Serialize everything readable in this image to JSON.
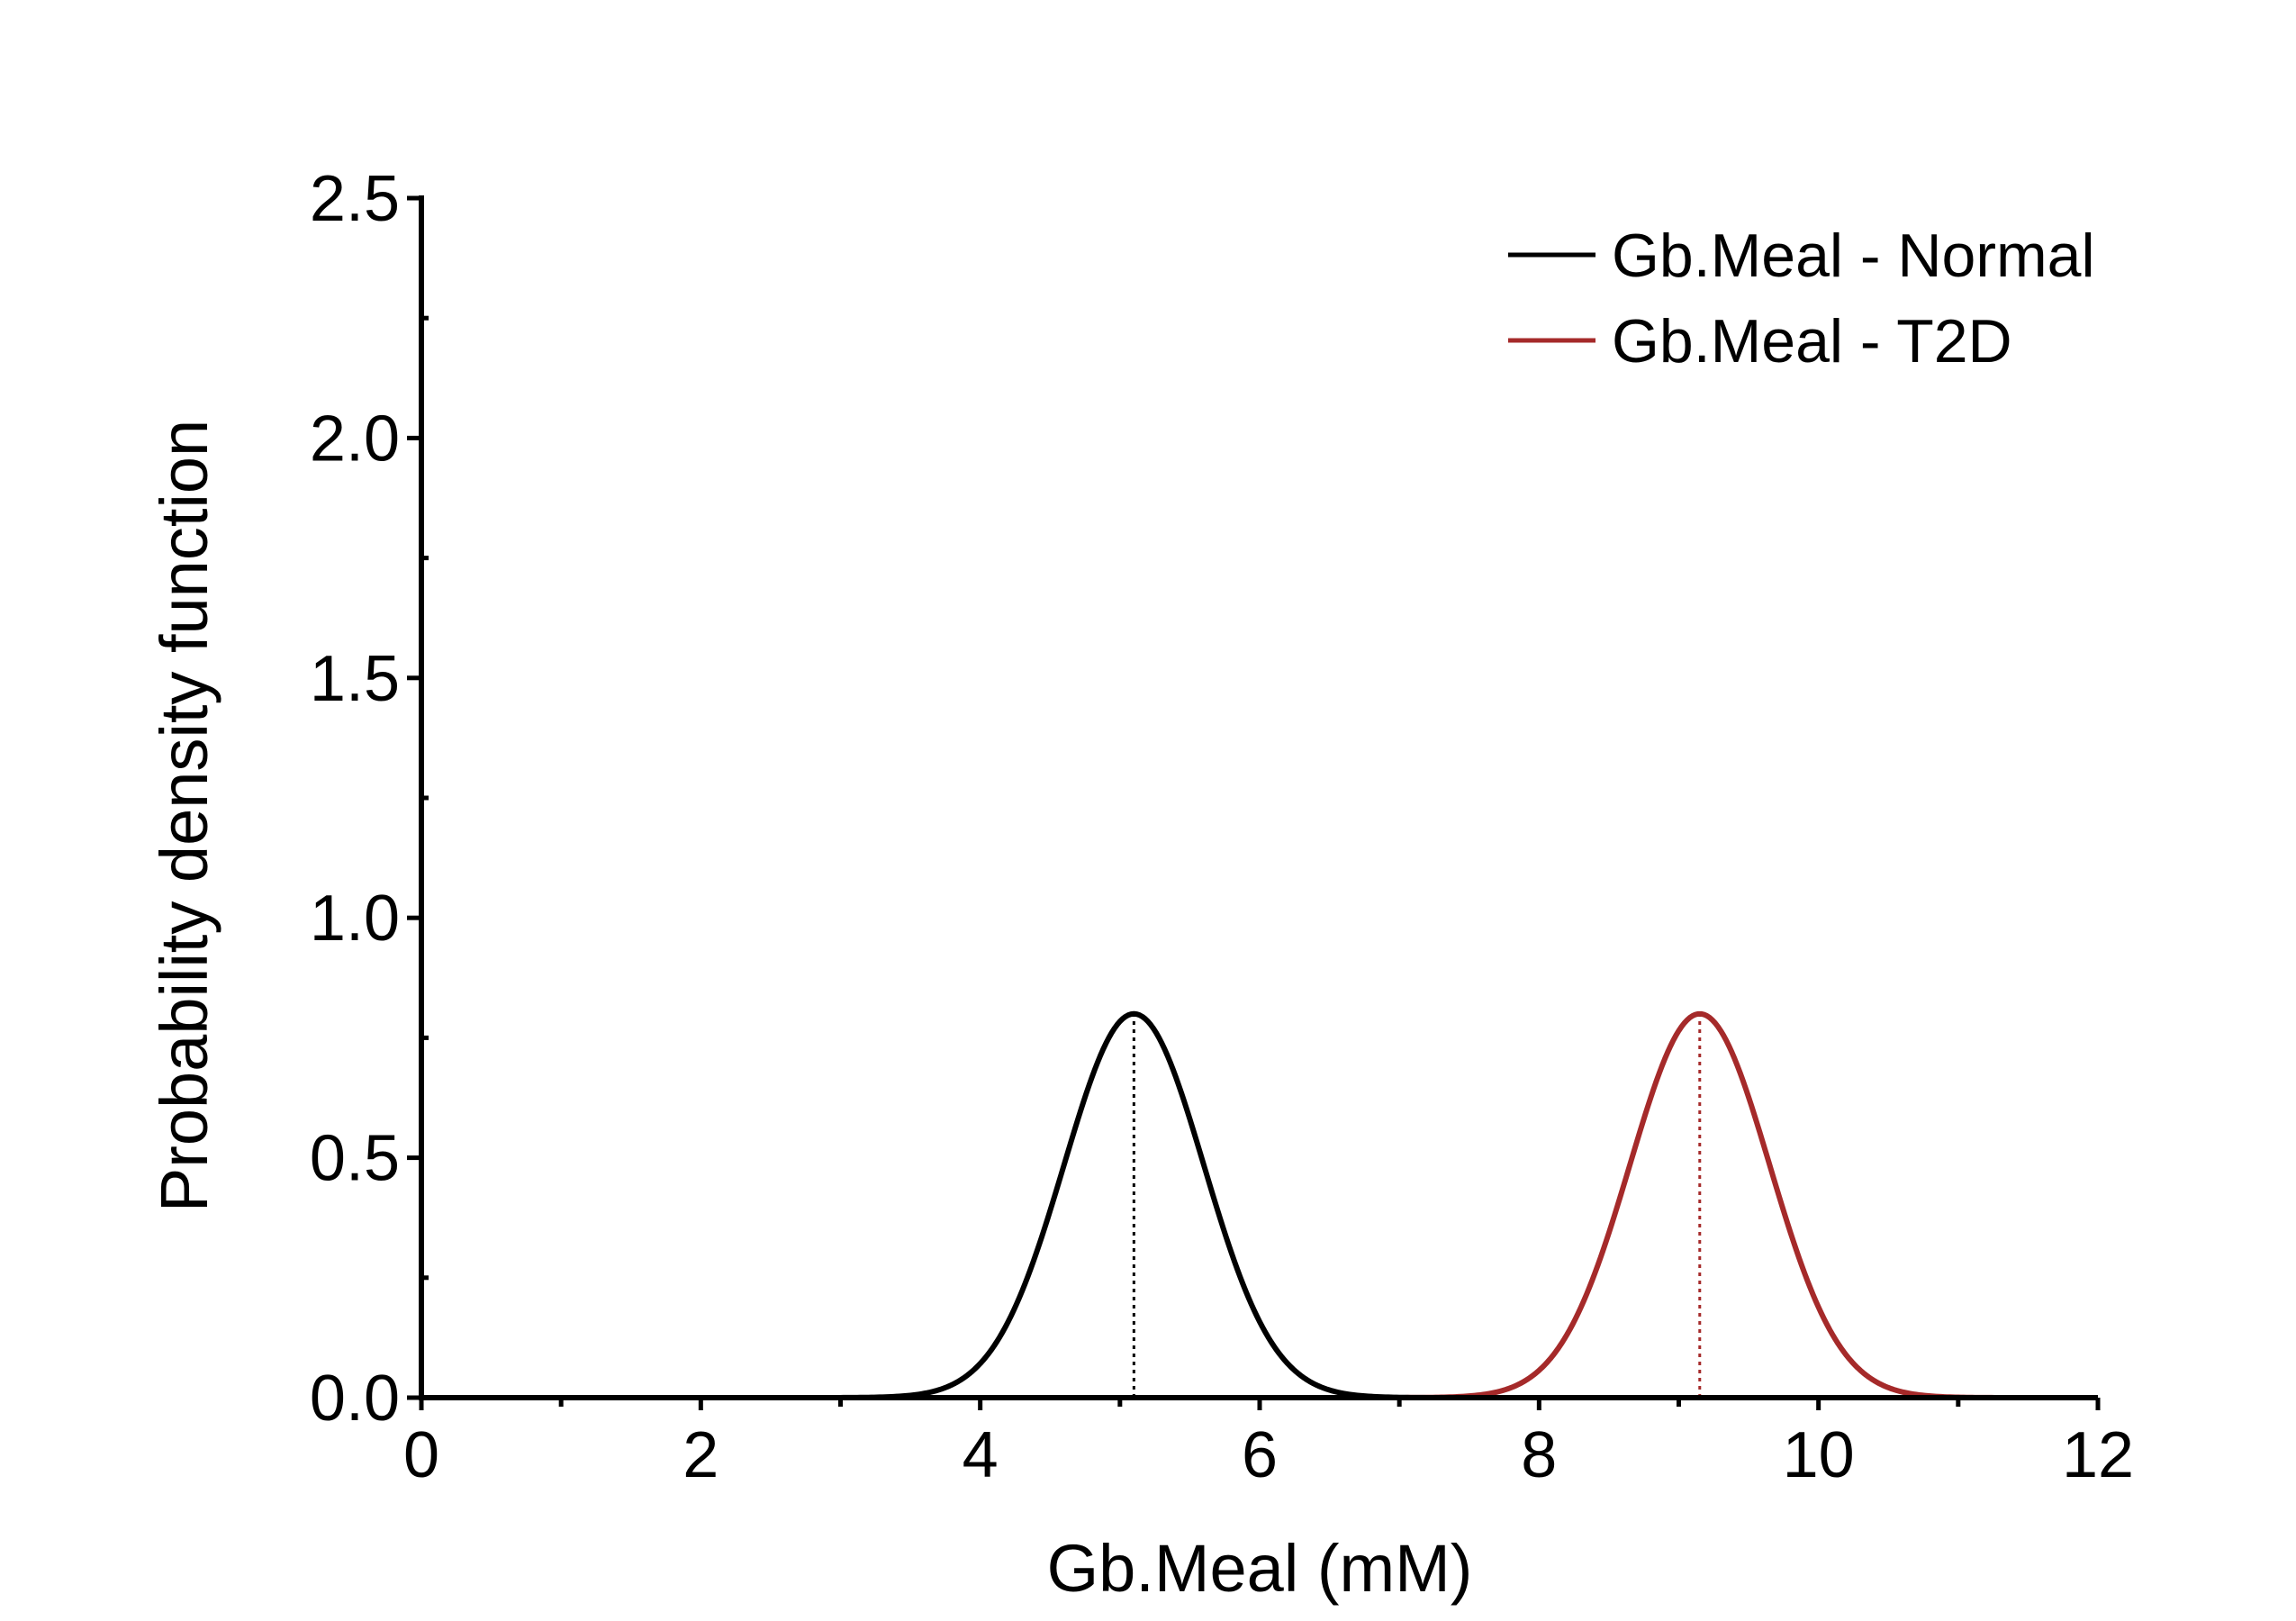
{
  "chart_data": {
    "type": "line",
    "xlabel": "Gb.Meal (mM)",
    "ylabel": "Probability density function",
    "xlim": [
      0,
      12
    ],
    "ylim": [
      0,
      2.5
    ],
    "x_ticks": [
      0,
      2,
      4,
      6,
      8,
      10,
      12
    ],
    "x_tick_labels": [
      "0",
      "2",
      "4",
      "6",
      "8",
      "10",
      "12"
    ],
    "x_minor_step": 1,
    "y_ticks": [
      0.0,
      0.5,
      1.0,
      1.5,
      2.0,
      2.5
    ],
    "y_tick_labels": [
      "0.0",
      "0.5",
      "1.0",
      "1.5",
      "2.0",
      "2.5"
    ],
    "y_minor_step": 0.25,
    "grid": false,
    "legend_position": "top-right",
    "series": [
      {
        "name": "Gb.Meal - Normal",
        "color": "#000000",
        "distribution": "normal",
        "mean": 5.1,
        "sd": 0.5,
        "peak": 0.8,
        "mean_marker": "dotted-vertical-line"
      },
      {
        "name": "Gb.Meal - T2D",
        "color": "#a52a2a",
        "distribution": "normal",
        "mean": 9.15,
        "sd": 0.5,
        "peak": 0.8,
        "mean_marker": "dotted-vertical-line"
      }
    ]
  }
}
